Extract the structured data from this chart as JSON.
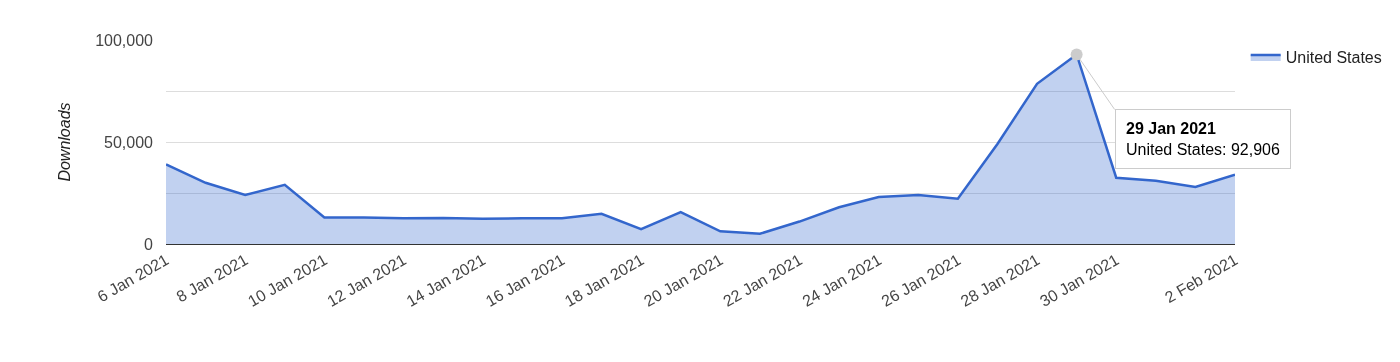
{
  "chart_data": {
    "type": "area",
    "ylabel": "Downloads",
    "x": [
      "2021-01-06",
      "2021-01-07",
      "2021-01-08",
      "2021-01-09",
      "2021-01-10",
      "2021-01-11",
      "2021-01-12",
      "2021-01-13",
      "2021-01-14",
      "2021-01-15",
      "2021-01-16",
      "2021-01-17",
      "2021-01-18",
      "2021-01-19",
      "2021-01-20",
      "2021-01-21",
      "2021-01-22",
      "2021-01-23",
      "2021-01-24",
      "2021-01-25",
      "2021-01-26",
      "2021-01-27",
      "2021-01-28",
      "2021-01-29",
      "2021-01-30",
      "2021-01-31",
      "2021-02-01",
      "2021-02-02"
    ],
    "series": [
      {
        "name": "United States",
        "color": "#3366cc",
        "values": [
          39000,
          30000,
          24000,
          29000,
          13000,
          13000,
          12600,
          12800,
          12400,
          12600,
          12600,
          14800,
          7300,
          15600,
          6200,
          5000,
          11000,
          18000,
          23000,
          24000,
          22200,
          49000,
          78500,
          92906,
          32500,
          31000,
          28000,
          34000
        ]
      }
    ],
    "xlim": [
      "2021-01-06",
      "2021-02-02"
    ],
    "xticks": [
      {
        "value": "2021-01-06",
        "label": "6 Jan 2021"
      },
      {
        "value": "2021-01-08",
        "label": "8 Jan 2021"
      },
      {
        "value": "2021-01-10",
        "label": "10 Jan 2021"
      },
      {
        "value": "2021-01-12",
        "label": "12 Jan 2021"
      },
      {
        "value": "2021-01-14",
        "label": "14 Jan 2021"
      },
      {
        "value": "2021-01-16",
        "label": "16 Jan 2021"
      },
      {
        "value": "2021-01-18",
        "label": "18 Jan 2021"
      },
      {
        "value": "2021-01-20",
        "label": "20 Jan 2021"
      },
      {
        "value": "2021-01-22",
        "label": "22 Jan 2021"
      },
      {
        "value": "2021-01-24",
        "label": "24 Jan 2021"
      },
      {
        "value": "2021-01-26",
        "label": "26 Jan 2021"
      },
      {
        "value": "2021-01-28",
        "label": "28 Jan 2021"
      },
      {
        "value": "2021-01-30",
        "label": "30 Jan 2021"
      },
      {
        "value": "2021-02-02",
        "label": "2 Feb 2021"
      }
    ],
    "ylim": [
      0,
      100000
    ],
    "yticks": [
      {
        "value": 0,
        "label": "0"
      },
      {
        "value": 25000,
        "label": null
      },
      {
        "value": 50000,
        "label": "50,000"
      },
      {
        "value": 75000,
        "label": null
      },
      {
        "value": 100000,
        "label": "100,000"
      }
    ],
    "grid": "y",
    "legend": "top right",
    "line_style": "solid",
    "annotations": [
      {
        "text": "29 Jan 2021\nUnited States: 92,906",
        "x": "2021-01-29",
        "y": 92906
      }
    ]
  }
}
